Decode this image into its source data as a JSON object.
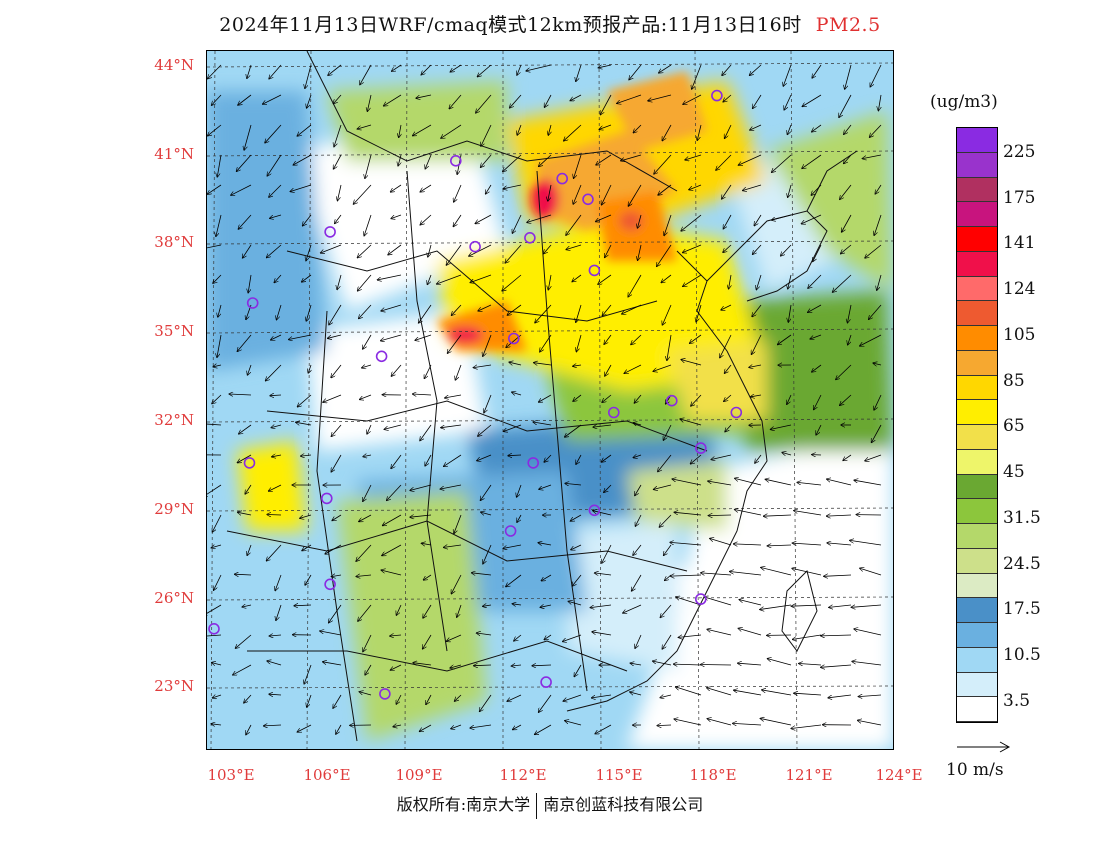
{
  "title": {
    "text": "2024年11月13日WRF/cmaq模式12km预报产品:11月13日16时",
    "product": "PM2.5"
  },
  "axes": {
    "lat_labels": [
      "44°N",
      "41°N",
      "38°N",
      "35°N",
      "32°N",
      "29°N",
      "26°N",
      "23°N"
    ],
    "lon_labels": [
      "103°E",
      "106°E",
      "109°E",
      "112°E",
      "115°E",
      "118°E",
      "121°E",
      "124°E"
    ]
  },
  "legend": {
    "unit": "(ug/m3)",
    "colors": [
      "#8a2be2",
      "#9933cc",
      "#b03060",
      "#c8147e",
      "#ff0000",
      "#f0104a",
      "#ff6a6a",
      "#ee5a30",
      "#ff8c00",
      "#f6a830",
      "#ffd700",
      "#ffee00",
      "#f2e04a",
      "#eef56a",
      "#6aa832",
      "#8cc63c",
      "#b4d86a",
      "#cde08a",
      "#dcebc4",
      "#4a90c8",
      "#6ab0e0",
      "#a0d8f4",
      "#d4eefa",
      "#ffffff"
    ],
    "labels": [
      "225",
      "175",
      "141",
      "124",
      "105",
      "85",
      "65",
      "45",
      "31.5",
      "24.5",
      "17.5",
      "10.5",
      "3.5"
    ]
  },
  "wind_reference": {
    "label": "10 m/s"
  },
  "copyright": {
    "left": "版权所有:南京大学",
    "right": "南京创蓝科技有限公司"
  },
  "cities": [
    {
      "lon": 118.6,
      "lat": 43.0
    },
    {
      "lon": 110.5,
      "lat": 40.8
    },
    {
      "lon": 113.8,
      "lat": 40.2
    },
    {
      "lon": 114.6,
      "lat": 39.5
    },
    {
      "lon": 106.6,
      "lat": 38.4
    },
    {
      "lon": 111.1,
      "lat": 37.9
    },
    {
      "lon": 112.8,
      "lat": 38.2
    },
    {
      "lon": 114.8,
      "lat": 37.1
    },
    {
      "lon": 104.2,
      "lat": 36.0
    },
    {
      "lon": 112.3,
      "lat": 34.8
    },
    {
      "lon": 108.2,
      "lat": 34.2
    },
    {
      "lon": 117.2,
      "lat": 32.7
    },
    {
      "lon": 115.4,
      "lat": 32.3
    },
    {
      "lon": 119.2,
      "lat": 32.3
    },
    {
      "lon": 118.1,
      "lat": 31.1
    },
    {
      "lon": 104.1,
      "lat": 30.6
    },
    {
      "lon": 112.9,
      "lat": 30.6
    },
    {
      "lon": 106.5,
      "lat": 29.4
    },
    {
      "lon": 114.8,
      "lat": 29.0
    },
    {
      "lon": 112.2,
      "lat": 28.3
    },
    {
      "lon": 106.6,
      "lat": 26.5
    },
    {
      "lon": 118.1,
      "lat": 26.0
    },
    {
      "lon": 103.0,
      "lat": 25.0
    },
    {
      "lon": 108.3,
      "lat": 22.8
    },
    {
      "lon": 113.3,
      "lat": 23.2
    }
  ]
}
